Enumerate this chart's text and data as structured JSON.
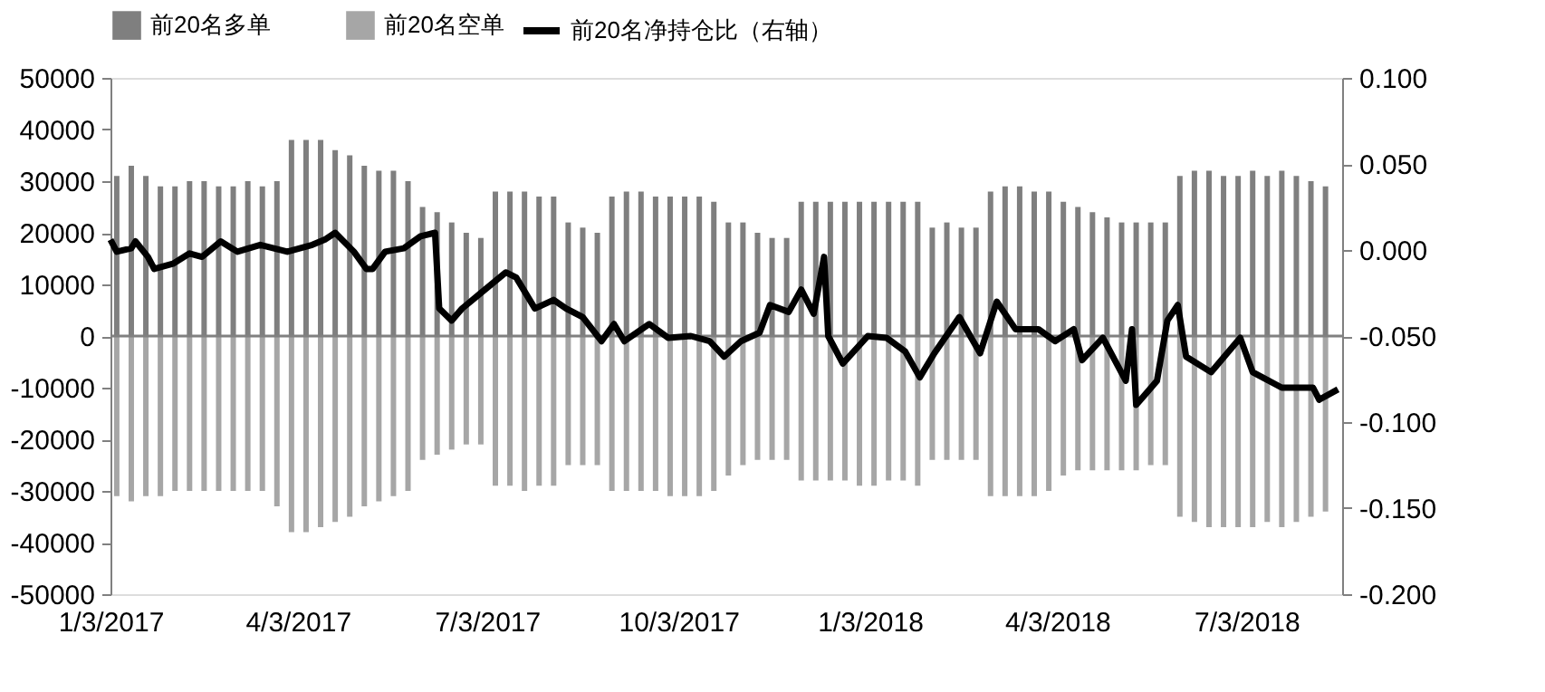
{
  "chart_data": {
    "type": "bar",
    "legend": "top",
    "x": [
      "2017-01-06",
      "2017-01-13",
      "2017-01-20",
      "2017-01-27",
      "2017-02-03",
      "2017-02-10",
      "2017-02-17",
      "2017-02-24",
      "2017-03-03",
      "2017-03-10",
      "2017-03-17",
      "2017-03-24",
      "2017-03-31",
      "2017-04-07",
      "2017-04-14",
      "2017-04-21",
      "2017-04-28",
      "2017-05-05",
      "2017-05-12",
      "2017-05-19",
      "2017-05-26",
      "2017-06-02",
      "2017-06-09",
      "2017-06-16",
      "2017-06-23",
      "2017-06-30",
      "2017-07-07",
      "2017-07-14",
      "2017-07-21",
      "2017-07-28",
      "2017-08-04",
      "2017-08-11",
      "2017-08-18",
      "2017-08-25",
      "2017-09-01",
      "2017-09-08",
      "2017-09-15",
      "2017-09-22",
      "2017-09-29",
      "2017-10-06",
      "2017-10-13",
      "2017-10-20",
      "2017-10-27",
      "2017-11-03",
      "2017-11-10",
      "2017-11-17",
      "2017-11-24",
      "2017-12-01",
      "2017-12-08",
      "2017-12-15",
      "2017-12-22",
      "2017-12-29",
      "2018-01-05",
      "2018-01-12",
      "2018-01-19",
      "2018-01-26",
      "2018-02-02",
      "2018-02-09",
      "2018-02-16",
      "2018-02-23",
      "2018-03-02",
      "2018-03-09",
      "2018-03-16",
      "2018-03-23",
      "2018-03-30",
      "2018-04-06",
      "2018-04-13",
      "2018-04-20",
      "2018-04-27",
      "2018-05-04",
      "2018-05-11",
      "2018-05-18",
      "2018-05-25",
      "2018-06-01",
      "2018-06-08",
      "2018-06-15",
      "2018-06-22",
      "2018-06-29",
      "2018-07-06",
      "2018-07-13",
      "2018-07-20",
      "2018-07-27",
      "2018-08-03",
      "2018-08-10"
    ],
    "series": [
      {
        "name": "前20名多单",
        "color": "#7f7f7f",
        "values": [
          31000,
          33000,
          31000,
          29000,
          29000,
          30000,
          30000,
          29000,
          29000,
          30000,
          29000,
          30000,
          38000,
          38000,
          38000,
          36000,
          35000,
          33000,
          32000,
          32000,
          30000,
          25000,
          24000,
          22000,
          20000,
          19000,
          28000,
          28000,
          28000,
          27000,
          27000,
          22000,
          21000,
          20000,
          27000,
          28000,
          28000,
          27000,
          27000,
          27000,
          27000,
          26000,
          22000,
          22000,
          20000,
          19000,
          19000,
          26000,
          26000,
          26000,
          26000,
          26000,
          26000,
          26000,
          26000,
          26000,
          21000,
          22000,
          21000,
          21000,
          28000,
          29000,
          29000,
          28000,
          28000,
          26000,
          25000,
          24000,
          23000,
          22000,
          22000,
          22000,
          22000,
          31000,
          32000,
          32000,
          31000,
          31000,
          32000,
          31000,
          32000,
          31000,
          30000,
          29000
        ]
      },
      {
        "name": "前20名空单",
        "color": "#a6a6a6",
        "values": [
          -31000,
          -32000,
          -31000,
          -31000,
          -30000,
          -30000,
          -30000,
          -30000,
          -30000,
          -30000,
          -30000,
          -33000,
          -38000,
          -38000,
          -37000,
          -36000,
          -35000,
          -33000,
          -32000,
          -31000,
          -30000,
          -24000,
          -23000,
          -22000,
          -21000,
          -21000,
          -29000,
          -29000,
          -30000,
          -29000,
          -29000,
          -25000,
          -25000,
          -25000,
          -30000,
          -30000,
          -30000,
          -30000,
          -31000,
          -31000,
          -31000,
          -30000,
          -27000,
          -25000,
          -24000,
          -24000,
          -24000,
          -28000,
          -28000,
          -28000,
          -28000,
          -29000,
          -29000,
          -28000,
          -28000,
          -29000,
          -24000,
          -24000,
          -24000,
          -24000,
          -31000,
          -31000,
          -31000,
          -31000,
          -30000,
          -27000,
          -26000,
          -26000,
          -26000,
          -26000,
          -26000,
          -25000,
          -25000,
          -35000,
          -36000,
          -37000,
          -37000,
          -37000,
          -37000,
          -36000,
          -37000,
          -36000,
          -35000,
          -34000
        ]
      },
      {
        "name": "前20名净持仓比（右轴）",
        "type": "line",
        "axis": "y2",
        "color": "#000000",
        "x": [
          "2017-01-03",
          "2017-01-06",
          "2017-01-13",
          "2017-01-15",
          "2017-01-21",
          "2017-01-24",
          "2017-02-02",
          "2017-02-10",
          "2017-02-16",
          "2017-02-25",
          "2017-03-05",
          "2017-03-16",
          "2017-03-29",
          "2017-04-10",
          "2017-04-16",
          "2017-04-21",
          "2017-04-30",
          "2017-05-06",
          "2017-05-09",
          "2017-05-15",
          "2017-05-24",
          "2017-06-01",
          "2017-06-08",
          "2017-06-10",
          "2017-06-16",
          "2017-06-21",
          "2017-06-30",
          "2017-07-12",
          "2017-07-17",
          "2017-07-26",
          "2017-08-04",
          "2017-08-10",
          "2017-08-18",
          "2017-08-27",
          "2017-09-02",
          "2017-09-07",
          "2017-09-19",
          "2017-09-28",
          "2017-10-09",
          "2017-10-18",
          "2017-10-25",
          "2017-11-02",
          "2017-11-11",
          "2017-11-16",
          "2017-11-25",
          "2017-12-01",
          "2017-12-07",
          "2017-12-12",
          "2017-12-14",
          "2017-12-21",
          "2018-01-02",
          "2018-01-11",
          "2018-01-20",
          "2018-01-27",
          "2018-02-03",
          "2018-02-15",
          "2018-02-25",
          "2018-03-05",
          "2018-03-14",
          "2018-03-25",
          "2018-04-02",
          "2018-04-11",
          "2018-04-15",
          "2018-04-25",
          "2018-05-06",
          "2018-05-09",
          "2018-05-11",
          "2018-05-21",
          "2018-05-26",
          "2018-05-31",
          "2018-06-04",
          "2018-06-16",
          "2018-06-30",
          "2018-07-06",
          "2018-07-20",
          "2018-08-04",
          "2018-08-07",
          "2018-08-16"
        ],
        "values": [
          0.006,
          -0.001,
          0.001,
          0.005,
          -0.004,
          -0.011,
          -0.008,
          -0.002,
          -0.004,
          0.005,
          -0.001,
          0.003,
          -0.001,
          0.003,
          0.006,
          0.01,
          -0.001,
          -0.011,
          -0.011,
          -0.001,
          0.001,
          0.008,
          0.01,
          -0.034,
          -0.041,
          -0.034,
          -0.025,
          -0.013,
          -0.016,
          -0.034,
          -0.029,
          -0.034,
          -0.039,
          -0.053,
          -0.043,
          -0.053,
          -0.043,
          -0.051,
          -0.05,
          -0.053,
          -0.062,
          -0.053,
          -0.048,
          -0.032,
          -0.036,
          -0.023,
          -0.037,
          -0.004,
          -0.05,
          -0.066,
          -0.05,
          -0.051,
          -0.059,
          -0.074,
          -0.06,
          -0.039,
          -0.06,
          -0.03,
          -0.046,
          -0.046,
          -0.053,
          -0.046,
          -0.064,
          -0.051,
          -0.076,
          -0.046,
          -0.09,
          -0.076,
          -0.041,
          -0.032,
          -0.062,
          -0.071,
          -0.051,
          -0.071,
          -0.08,
          -0.08,
          -0.087,
          -0.081
        ]
      }
    ],
    "xlim": [
      "2017-01-03",
      "2018-08-18"
    ],
    "xticks": [
      {
        "value": "2017-01-03",
        "label": "1/3/2017"
      },
      {
        "value": "2017-04-03",
        "label": "4/3/2017"
      },
      {
        "value": "2017-07-03",
        "label": "7/3/2017"
      },
      {
        "value": "2017-10-03",
        "label": "10/3/2017"
      },
      {
        "value": "2018-01-03",
        "label": "1/3/2018"
      },
      {
        "value": "2018-04-03",
        "label": "4/3/2018"
      },
      {
        "value": "2018-07-03",
        "label": "7/3/2018"
      }
    ],
    "ylim": [
      -50000,
      50000
    ],
    "yticks": [
      -50000,
      -40000,
      -30000,
      -20000,
      -10000,
      0,
      10000,
      20000,
      30000,
      40000,
      50000
    ],
    "y2lim": [
      -0.2,
      0.1
    ],
    "y2ticks": [
      {
        "value": -0.2,
        "label": "-0.200"
      },
      {
        "value": -0.15,
        "label": "-0.150"
      },
      {
        "value": -0.1,
        "label": "-0.100"
      },
      {
        "value": -0.05,
        "label": "-0.050"
      },
      {
        "value": 0,
        "label": "0.000"
      },
      {
        "value": 0.05,
        "label": "0.050"
      },
      {
        "value": 0.1,
        "label": "0.100"
      }
    ],
    "ref_lines": [
      {
        "axis": "y",
        "value": 0,
        "color": "#808080"
      }
    ],
    "stacked": true,
    "grid": false,
    "line_style": "solid",
    "marker": "none"
  }
}
